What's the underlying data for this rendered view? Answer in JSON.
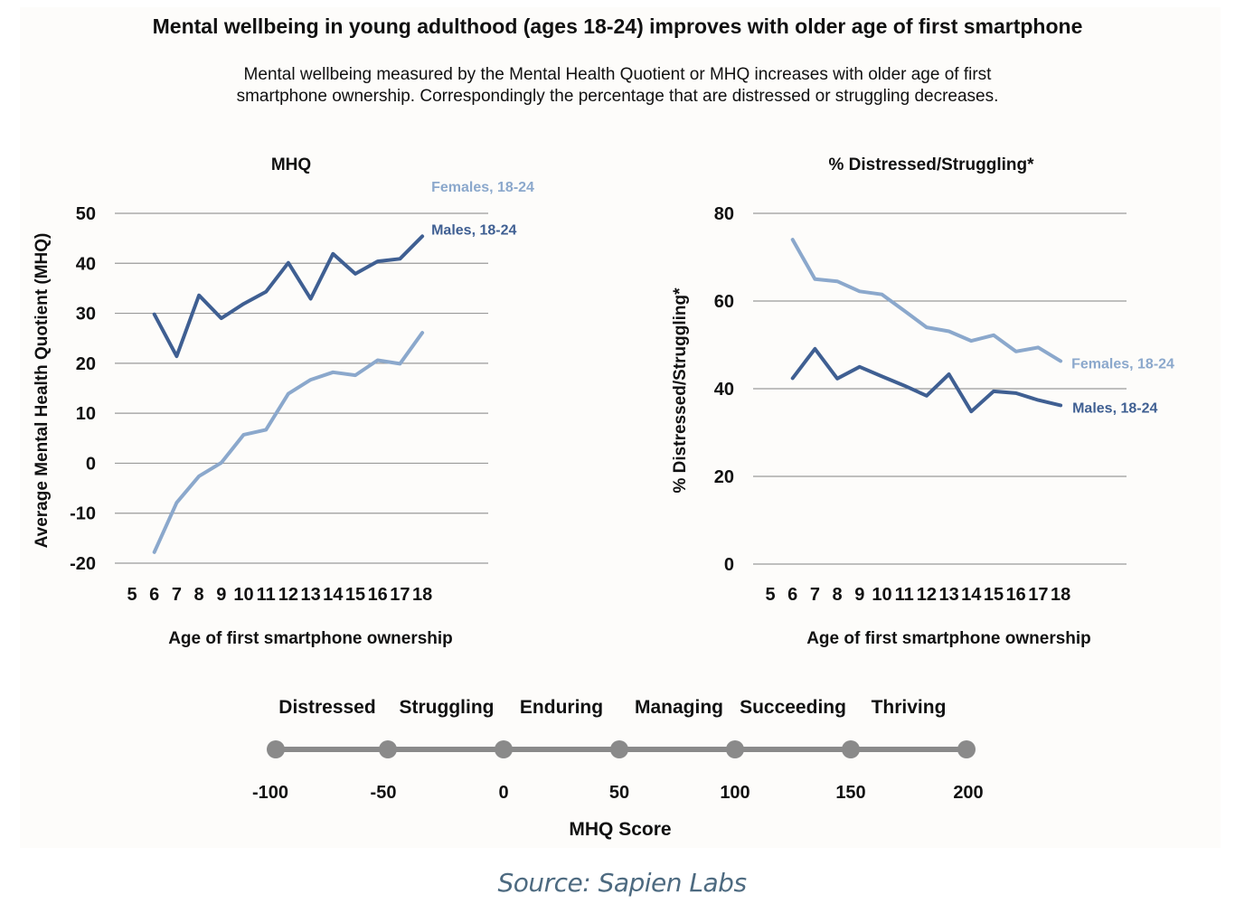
{
  "title": "Mental wellbeing in young adulthood (ages 18-24) improves with older age of first smartphone",
  "subtitle_lines": [
    "Mental wellbeing measured by the Mental Health Quotient or MHQ increases with older age of first",
    "smartphone ownership. Correspondingly the percentage that are distressed or struggling decreases."
  ],
  "source": "Source: Sapien Labs",
  "colors": {
    "males": "#3f5f92",
    "females": "#8ba8cc",
    "scale": "#8a8a8a"
  },
  "chart_data": [
    {
      "type": "line",
      "title": "MHQ",
      "xlabel": "Age of first smartphone ownership",
      "ylabel": "Average Mental Health Quotient (MHQ)",
      "x_ticks": [
        "5",
        "6",
        "7",
        "8",
        "9",
        "10",
        "11",
        "12",
        "13",
        "14",
        "15",
        "16",
        "17",
        "18"
      ],
      "y_ticks": [
        "50",
        "40",
        "30",
        "20",
        "10",
        "0",
        "-10",
        "-20"
      ],
      "ylim": [
        -20,
        50
      ],
      "xlim": [
        5,
        18
      ],
      "grid": true,
      "x": [
        6,
        7,
        8,
        9,
        10,
        11,
        12,
        13,
        14,
        15,
        16,
        17,
        18
      ],
      "series": [
        {
          "name": "Males, 18-24",
          "color": "#3f5f92",
          "values": [
            29.8,
            21.4,
            33.6,
            29.0,
            31.9,
            34.3,
            40.1,
            32.9,
            41.9,
            37.9,
            40.4,
            40.9,
            45.4
          ]
        },
        {
          "name": "Females, 18-24",
          "color": "#8ba8cc",
          "values": [
            -17.8,
            -7.9,
            -2.6,
            0.1,
            5.7,
            6.7,
            13.9,
            16.7,
            18.2,
            17.6,
            20.6,
            19.9,
            26.1
          ]
        }
      ]
    },
    {
      "type": "line",
      "title": "% Distressed/Struggling*",
      "xlabel": "Age of first smartphone ownership",
      "ylabel": "% Distressed/Struggling*",
      "x_ticks": [
        "5",
        "6",
        "7",
        "8",
        "9",
        "10",
        "11",
        "12",
        "13",
        "14",
        "15",
        "16",
        "17",
        "18"
      ],
      "y_ticks": [
        "80",
        "60",
        "40",
        "20",
        "0"
      ],
      "ylim": [
        0,
        80
      ],
      "xlim": [
        5,
        18
      ],
      "grid": true,
      "x": [
        6,
        7,
        8,
        9,
        10,
        11,
        12,
        13,
        14,
        15,
        16,
        17,
        18
      ],
      "series": [
        {
          "name": "Females, 18-24",
          "color": "#8ba8cc",
          "values": [
            74.0,
            65.0,
            64.5,
            62.2,
            61.5,
            57.8,
            54.0,
            53.1,
            50.9,
            52.2,
            48.5,
            49.4,
            46.3
          ]
        },
        {
          "name": "Males, 18-24",
          "color": "#3f5f92",
          "values": [
            42.4,
            49.1,
            42.3,
            45.0,
            42.8,
            40.7,
            38.4,
            43.3,
            34.8,
            39.4,
            39.0,
            37.4,
            36.2
          ]
        }
      ]
    }
  ],
  "mhq_scale": {
    "categories": [
      "Distressed",
      "Struggling",
      "Enduring",
      "Managing",
      "Succeeding",
      "Thriving"
    ],
    "ticks": [
      "-100",
      "-50",
      "0",
      "50",
      "100",
      "150",
      "200"
    ],
    "label": "MHQ Score"
  }
}
